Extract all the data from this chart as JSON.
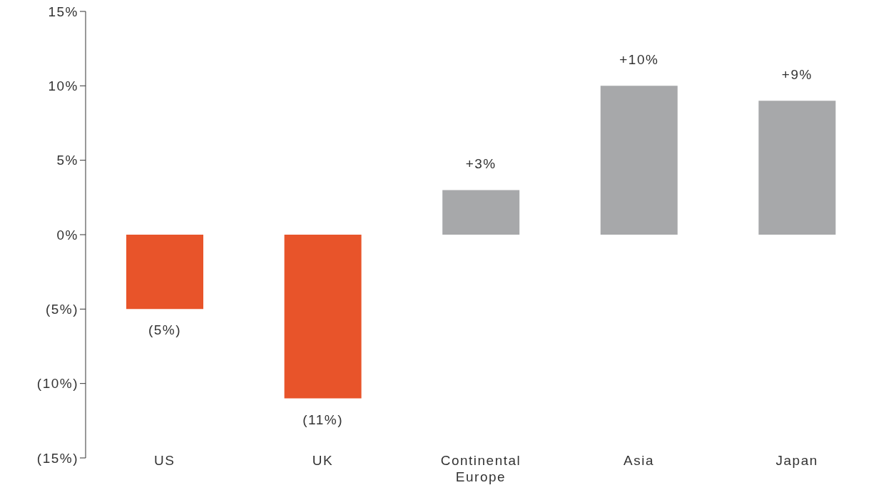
{
  "chart_data": {
    "type": "bar",
    "categories": [
      "US",
      "UK",
      "Continental Europe",
      "Asia",
      "Japan"
    ],
    "values": [
      -5,
      -11,
      3,
      10,
      9
    ],
    "colors": [
      "#e8542a",
      "#e8542a",
      "#a7a8aa",
      "#a7a8aa",
      "#a7a8aa"
    ],
    "value_labels": [
      "(5%)",
      "(11%)",
      "+3%",
      "+10%",
      "+9%"
    ],
    "ylim": [
      -15,
      15
    ],
    "yticks": [
      {
        "value": -15,
        "label": "(15%)"
      },
      {
        "value": -10,
        "label": "(10%)"
      },
      {
        "value": -5,
        "label": "(5%)"
      },
      {
        "value": 0,
        "label": "0%"
      },
      {
        "value": 5,
        "label": "5%"
      },
      {
        "value": 10,
        "label": "10%"
      },
      {
        "value": 15,
        "label": "15%"
      }
    ],
    "grid": false,
    "legend": false
  }
}
